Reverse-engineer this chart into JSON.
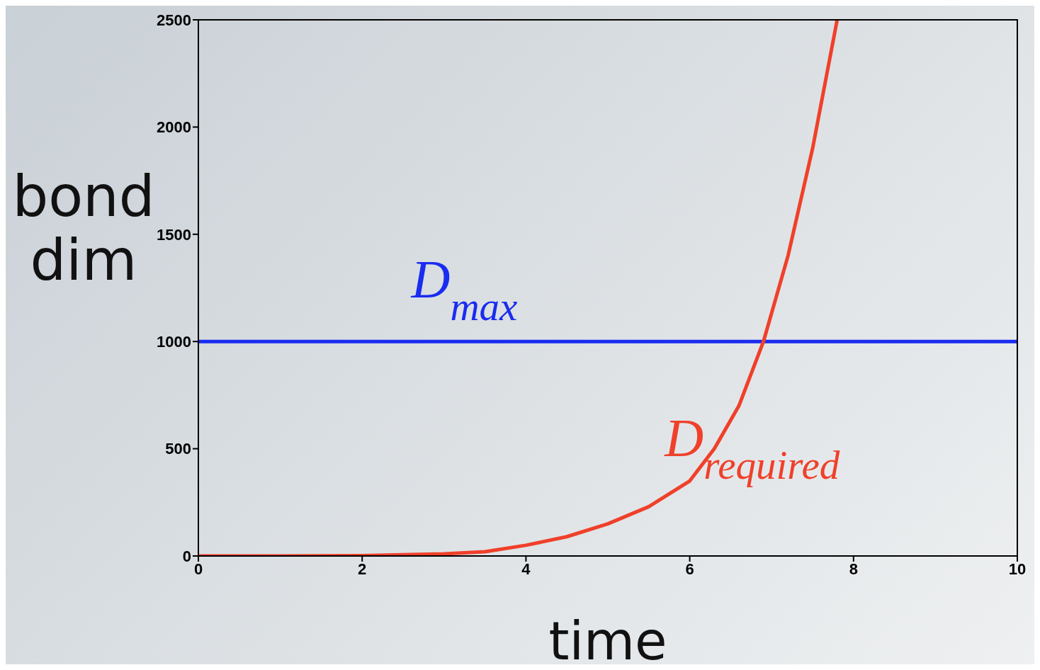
{
  "chart_data": {
    "type": "line",
    "xlabel": "time",
    "ylabel": "bond dim",
    "xlim": [
      0,
      10
    ],
    "ylim": [
      0,
      2500
    ],
    "xticks": [
      0,
      2,
      4,
      6,
      8,
      10
    ],
    "yticks": [
      0,
      500,
      1000,
      1500,
      2000,
      2500
    ],
    "marker": "none",
    "line_style": "solid",
    "series": [
      {
        "name": "D$_{max}$",
        "color": "#1a2cf0",
        "x": [
          0,
          10
        ],
        "values": [
          1000,
          1000
        ]
      },
      {
        "name": "D$_{required}$",
        "color": "#f0402a",
        "x": [
          0,
          1,
          2,
          3,
          3.5,
          4,
          4.5,
          5,
          5.5,
          6,
          6.3,
          6.6,
          6.9,
          7.2,
          7.5,
          7.8
        ],
        "values": [
          0,
          0,
          2,
          10,
          20,
          50,
          90,
          150,
          230,
          350,
          500,
          700,
          1000,
          1400,
          1900,
          2500
        ]
      }
    ]
  }
}
